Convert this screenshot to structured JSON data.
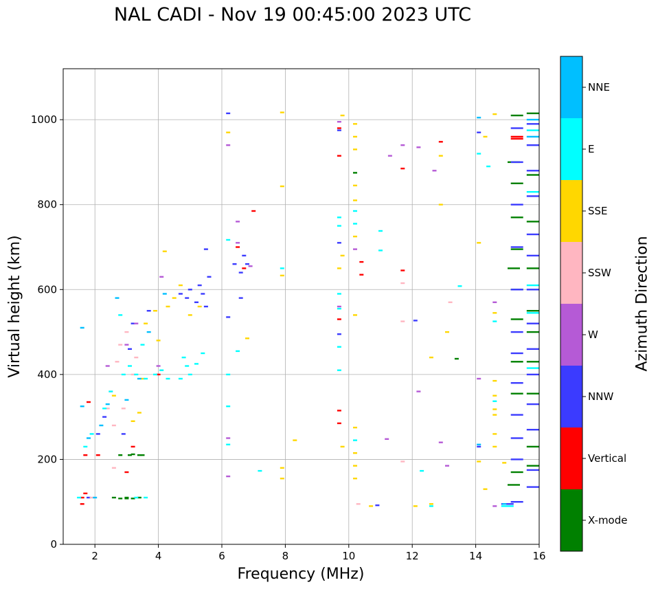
{
  "chart_data": {
    "type": "scatter",
    "title": "NAL CADI - Nov 19 00:45:00 2023 UTC",
    "xlabel": "Frequency (MHz)",
    "ylabel": "Virtual height (km)",
    "xlim": [
      1,
      16
    ],
    "ylim": [
      0,
      1120
    ],
    "xticks": [
      2,
      4,
      6,
      8,
      10,
      12,
      14,
      16
    ],
    "yticks": [
      0,
      200,
      400,
      600,
      800,
      1000
    ],
    "grid": true,
    "colorbar": {
      "title": "Azimuth Direction",
      "categories": [
        {
          "name": "X-mode",
          "color": "#008000"
        },
        {
          "name": "Vertical",
          "color": "#ff0000"
        },
        {
          "name": "NNW",
          "color": "#3b3bff"
        },
        {
          "name": "W",
          "color": "#b55ad6"
        },
        {
          "name": "SSW",
          "color": "#ffb6c1"
        },
        {
          "name": "SSE",
          "color": "#ffd700"
        },
        {
          "name": "E",
          "color": "#00ffff"
        },
        {
          "name": "NNE",
          "color": "#00bfff"
        }
      ]
    },
    "series": [
      {
        "name": "X-mode",
        "points": [
          [
            2.8,
            108
          ],
          [
            3.0,
            108
          ],
          [
            3.2,
            108
          ],
          [
            3.4,
            110
          ],
          [
            2.6,
            110
          ],
          [
            3.0,
            110
          ],
          [
            3.2,
            212
          ],
          [
            3.4,
            210
          ],
          [
            3.1,
            210
          ],
          [
            3.5,
            210
          ],
          [
            2.8,
            210
          ],
          [
            10.2,
            875
          ],
          [
            13.4,
            437
          ],
          [
            15.3,
            1010
          ],
          [
            15.3,
            850
          ],
          [
            15.3,
            770
          ],
          [
            15.3,
            695
          ],
          [
            15.3,
            600
          ],
          [
            15.3,
            530
          ],
          [
            15.3,
            430
          ],
          [
            15.3,
            355
          ],
          [
            15.3,
            170
          ],
          [
            15.8,
            1015
          ],
          [
            15.8,
            870
          ],
          [
            15.8,
            760
          ],
          [
            15.8,
            650
          ],
          [
            15.8,
            550
          ],
          [
            15.8,
            500
          ],
          [
            15.8,
            430
          ],
          [
            15.8,
            355
          ],
          [
            15.8,
            230
          ],
          [
            15.8,
            185
          ],
          [
            15.2,
            900
          ],
          [
            15.2,
            650
          ],
          [
            15.2,
            140
          ]
        ]
      },
      {
        "name": "Vertical",
        "points": [
          [
            1.6,
            110
          ],
          [
            1.7,
            120
          ],
          [
            1.6,
            95
          ],
          [
            1.7,
            210
          ],
          [
            1.8,
            335
          ],
          [
            2.1,
            210
          ],
          [
            3.0,
            170
          ],
          [
            3.2,
            230
          ],
          [
            4.0,
            400
          ],
          [
            6.7,
            650
          ],
          [
            6.5,
            700
          ],
          [
            7.0,
            785
          ],
          [
            9.7,
            980
          ],
          [
            9.7,
            915
          ],
          [
            9.7,
            530
          ],
          [
            9.7,
            315
          ],
          [
            9.7,
            285
          ],
          [
            10.4,
            665
          ],
          [
            10.4,
            635
          ],
          [
            11.7,
            885
          ],
          [
            11.7,
            645
          ],
          [
            12.9,
            948
          ],
          [
            15.3,
            960
          ],
          [
            15.3,
            955
          ]
        ]
      },
      {
        "name": "NNW",
        "points": [
          [
            1.8,
            110
          ],
          [
            2.1,
            260
          ],
          [
            2.3,
            300
          ],
          [
            2.9,
            260
          ],
          [
            3.1,
            460
          ],
          [
            3.2,
            520
          ],
          [
            3.7,
            550
          ],
          [
            4.7,
            590
          ],
          [
            5.0,
            600
          ],
          [
            5.3,
            610
          ],
          [
            5.4,
            590
          ],
          [
            5.2,
            570
          ],
          [
            5.5,
            560
          ],
          [
            4.9,
            580
          ],
          [
            5.6,
            630
          ],
          [
            5.5,
            695
          ],
          [
            6.2,
            1015
          ],
          [
            6.2,
            535
          ],
          [
            6.4,
            660
          ],
          [
            6.6,
            640
          ],
          [
            6.8,
            660
          ],
          [
            6.7,
            680
          ],
          [
            6.6,
            580
          ],
          [
            9.7,
            975
          ],
          [
            9.7,
            710
          ],
          [
            9.7,
            495
          ],
          [
            10.9,
            92
          ],
          [
            12.1,
            527
          ],
          [
            14.1,
            970
          ],
          [
            14.1,
            230
          ],
          [
            15.0,
            95
          ],
          [
            15.3,
            980
          ],
          [
            15.3,
            900
          ],
          [
            15.3,
            800
          ],
          [
            15.3,
            700
          ],
          [
            15.3,
            600
          ],
          [
            15.3,
            500
          ],
          [
            15.3,
            450
          ],
          [
            15.3,
            380
          ],
          [
            15.3,
            305
          ],
          [
            15.3,
            250
          ],
          [
            15.3,
            200
          ],
          [
            15.3,
            100
          ],
          [
            15.8,
            990
          ],
          [
            15.8,
            940
          ],
          [
            15.8,
            880
          ],
          [
            15.8,
            820
          ],
          [
            15.8,
            730
          ],
          [
            15.8,
            680
          ],
          [
            15.8,
            600
          ],
          [
            15.8,
            520
          ],
          [
            15.8,
            460
          ],
          [
            15.8,
            400
          ],
          [
            15.8,
            330
          ],
          [
            15.8,
            270
          ],
          [
            15.8,
            175
          ],
          [
            15.8,
            135
          ]
        ]
      },
      {
        "name": "W",
        "points": [
          [
            2.4,
            420
          ],
          [
            3.0,
            470
          ],
          [
            3.3,
            520
          ],
          [
            4.0,
            420
          ],
          [
            4.1,
            630
          ],
          [
            6.2,
            940
          ],
          [
            6.2,
            250
          ],
          [
            6.2,
            160
          ],
          [
            6.5,
            710
          ],
          [
            6.5,
            760
          ],
          [
            6.9,
            655
          ],
          [
            9.7,
            995
          ],
          [
            9.7,
            560
          ],
          [
            10.2,
            695
          ],
          [
            11.2,
            248
          ],
          [
            11.3,
            915
          ],
          [
            11.7,
            940
          ],
          [
            12.2,
            935
          ],
          [
            12.2,
            360
          ],
          [
            12.7,
            880
          ],
          [
            12.9,
            240
          ],
          [
            13.1,
            185
          ],
          [
            14.1,
            390
          ],
          [
            14.6,
            570
          ],
          [
            14.6,
            90
          ]
        ]
      },
      {
        "name": "SSW",
        "points": [
          [
            2.4,
            320
          ],
          [
            2.6,
            280
          ],
          [
            2.7,
            430
          ],
          [
            2.8,
            470
          ],
          [
            3.0,
            500
          ],
          [
            3.2,
            400
          ],
          [
            2.5,
            360
          ],
          [
            2.9,
            320
          ],
          [
            3.3,
            440
          ],
          [
            1.9,
            110
          ],
          [
            2.6,
            180
          ],
          [
            10.3,
            95
          ],
          [
            11.7,
            615
          ],
          [
            11.7,
            525
          ],
          [
            11.7,
            195
          ],
          [
            13.2,
            570
          ]
        ]
      },
      {
        "name": "SSE",
        "points": [
          [
            2.6,
            350
          ],
          [
            3.2,
            290
          ],
          [
            3.4,
            310
          ],
          [
            3.5,
            390
          ],
          [
            3.6,
            520
          ],
          [
            3.9,
            550
          ],
          [
            4.0,
            480
          ],
          [
            4.2,
            690
          ],
          [
            4.3,
            560
          ],
          [
            4.5,
            580
          ],
          [
            4.7,
            610
          ],
          [
            5.0,
            540
          ],
          [
            5.3,
            560
          ],
          [
            6.2,
            970
          ],
          [
            6.8,
            485
          ],
          [
            7.9,
            1017
          ],
          [
            7.9,
            843
          ],
          [
            7.9,
            633
          ],
          [
            7.9,
            180
          ],
          [
            7.9,
            155
          ],
          [
            8.3,
            245
          ],
          [
            9.7,
            650
          ],
          [
            9.8,
            1010
          ],
          [
            9.8,
            680
          ],
          [
            9.8,
            230
          ],
          [
            10.2,
            990
          ],
          [
            10.2,
            960
          ],
          [
            10.2,
            930
          ],
          [
            10.2,
            845
          ],
          [
            10.2,
            810
          ],
          [
            10.2,
            725
          ],
          [
            10.2,
            540
          ],
          [
            10.2,
            275
          ],
          [
            10.2,
            215
          ],
          [
            10.2,
            185
          ],
          [
            10.2,
            155
          ],
          [
            10.7,
            90
          ],
          [
            12.1,
            90
          ],
          [
            12.6,
            95
          ],
          [
            12.6,
            440
          ],
          [
            12.9,
            915
          ],
          [
            12.9,
            800
          ],
          [
            13.1,
            500
          ],
          [
            14.1,
            710
          ],
          [
            14.1,
            195
          ],
          [
            14.3,
            960
          ],
          [
            14.3,
            130
          ],
          [
            14.6,
            1013
          ],
          [
            14.6,
            545
          ],
          [
            14.6,
            385
          ],
          [
            14.6,
            350
          ],
          [
            14.6,
            318
          ],
          [
            14.6,
            305
          ],
          [
            14.6,
            260
          ],
          [
            14.6,
            230
          ],
          [
            14.9,
            192
          ]
        ]
      },
      {
        "name": "E",
        "points": [
          [
            1.5,
            110
          ],
          [
            1.7,
            230
          ],
          [
            1.9,
            260
          ],
          [
            2.3,
            320
          ],
          [
            2.5,
            360
          ],
          [
            2.9,
            400
          ],
          [
            3.3,
            400
          ],
          [
            3.6,
            390
          ],
          [
            3.9,
            400
          ],
          [
            4.1,
            410
          ],
          [
            4.3,
            390
          ],
          [
            4.7,
            390
          ],
          [
            4.9,
            420
          ],
          [
            5.2,
            425
          ],
          [
            5.4,
            450
          ],
          [
            4.8,
            440
          ],
          [
            5.0,
            400
          ],
          [
            3.1,
            420
          ],
          [
            3.5,
            470
          ],
          [
            2.8,
            540
          ],
          [
            3.3,
            110
          ],
          [
            3.6,
            110
          ],
          [
            6.2,
            717
          ],
          [
            6.2,
            400
          ],
          [
            6.2,
            325
          ],
          [
            6.2,
            235
          ],
          [
            6.5,
            455
          ],
          [
            7.2,
            173
          ],
          [
            7.9,
            650
          ],
          [
            9.7,
            770
          ],
          [
            9.7,
            750
          ],
          [
            9.7,
            590
          ],
          [
            9.7,
            555
          ],
          [
            9.7,
            465
          ],
          [
            9.7,
            410
          ],
          [
            10.2,
            785
          ],
          [
            10.2,
            755
          ],
          [
            10.2,
            245
          ],
          [
            11.0,
            738
          ],
          [
            11.0,
            692
          ],
          [
            12.3,
            173
          ],
          [
            12.6,
            90
          ],
          [
            13.5,
            608
          ],
          [
            14.1,
            920
          ],
          [
            14.4,
            890
          ],
          [
            14.6,
            525
          ],
          [
            14.6,
            337
          ],
          [
            15.0,
            90
          ],
          [
            15.8,
            975
          ],
          [
            15.8,
            830
          ],
          [
            15.8,
            610
          ],
          [
            15.8,
            545
          ],
          [
            15.8,
            415
          ]
        ]
      },
      {
        "name": "NNE",
        "points": [
          [
            1.6,
            510
          ],
          [
            1.6,
            325
          ],
          [
            1.8,
            250
          ],
          [
            2.0,
            110
          ],
          [
            2.2,
            280
          ],
          [
            2.4,
            330
          ],
          [
            2.7,
            580
          ],
          [
            3.0,
            340
          ],
          [
            3.4,
            390
          ],
          [
            4.2,
            590
          ],
          [
            3.7,
            500
          ],
          [
            14.1,
            1005
          ],
          [
            14.1,
            235
          ],
          [
            14.9,
            95
          ],
          [
            15.8,
            1000
          ],
          [
            15.8,
            960
          ]
        ]
      }
    ]
  }
}
